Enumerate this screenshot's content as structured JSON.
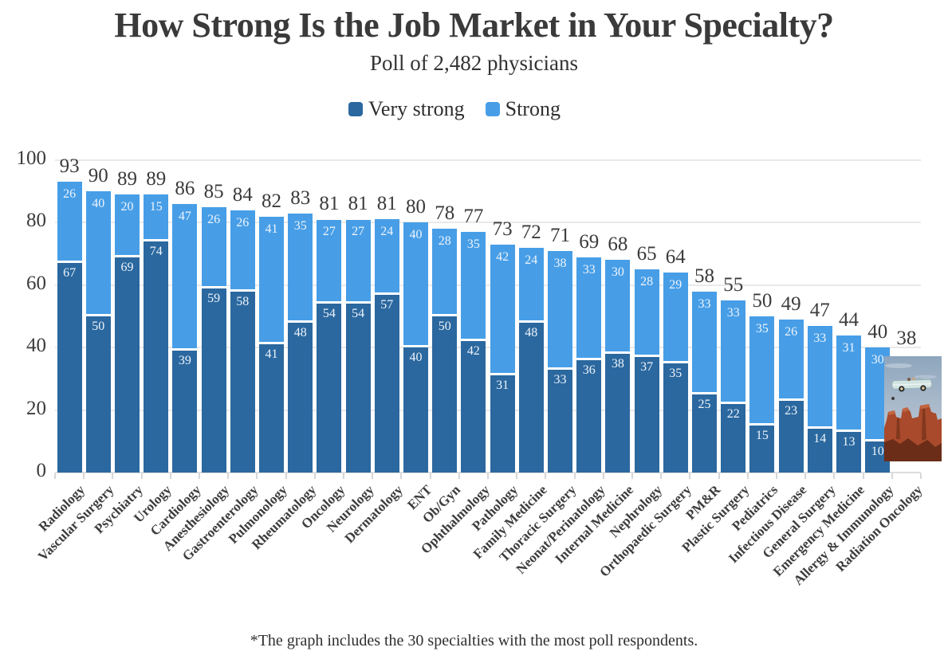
{
  "title": "How Strong Is the Job Market in Your Specialty?",
  "subtitle": "Poll of 2,482 physicians",
  "legend": [
    {
      "label": "Very strong",
      "color": "#2b689f"
    },
    {
      "label": "Strong",
      "color": "#479ee7"
    }
  ],
  "footnote": "*The graph includes the 30 specialties with the most poll respondents.",
  "chart_data": {
    "type": "bar",
    "stacked": true,
    "title": "How Strong Is the Job Market in Your Specialty?",
    "subtitle": "Poll of 2,482 physicians",
    "legend_position": "top-center",
    "grid": true,
    "ylim": [
      0,
      100
    ],
    "yticks": [
      0,
      20,
      40,
      60,
      80,
      100
    ],
    "categories": [
      "Radiology",
      "Vascular Surgery",
      "Psychiatry",
      "Urology",
      "Cardiology",
      "Anesthesiology",
      "Gastroenterology",
      "Pulmonology",
      "Rheumatology",
      "Oncology",
      "Neurology",
      "Dermatology",
      "ENT",
      "Ob/Gyn",
      "Ophthalmology",
      "Pathology",
      "Family Medicine",
      "Thoracic Surgery",
      "Neonat/Perinatology",
      "Internal Medicine",
      "Nephrology",
      "Orthopaedic Surgery",
      "PM&R",
      "Plastic Surgery",
      "Pediatrics",
      "Infectious Disease",
      "General Surgery",
      "Emergency Medicine",
      "Allergy & Immunology",
      "Radiation Oncology"
    ],
    "series": [
      {
        "name": "Very strong",
        "color": "#2b689f",
        "values": [
          67,
          50,
          69,
          74,
          39,
          59,
          58,
          41,
          48,
          54,
          54,
          57,
          40,
          50,
          42,
          31,
          48,
          33,
          36,
          38,
          37,
          35,
          25,
          22,
          15,
          23,
          14,
          13,
          10,
          null
        ]
      },
      {
        "name": "Strong",
        "color": "#479ee7",
        "values": [
          26,
          40,
          20,
          15,
          47,
          26,
          26,
          41,
          35,
          27,
          27,
          24,
          40,
          28,
          35,
          42,
          24,
          38,
          33,
          30,
          28,
          29,
          33,
          33,
          35,
          26,
          33,
          31,
          30,
          null
        ]
      }
    ],
    "totals": [
      93,
      90,
      89,
      89,
      86,
      85,
      84,
      82,
      83,
      81,
      81,
      81,
      80,
      78,
      77,
      73,
      72,
      71,
      69,
      68,
      65,
      64,
      58,
      55,
      50,
      49,
      47,
      44,
      40,
      38
    ],
    "annotation": "Last category (Radiation Oncology, 38) shows a photo of a convertible car flying off a canyon cliff instead of a bar"
  }
}
